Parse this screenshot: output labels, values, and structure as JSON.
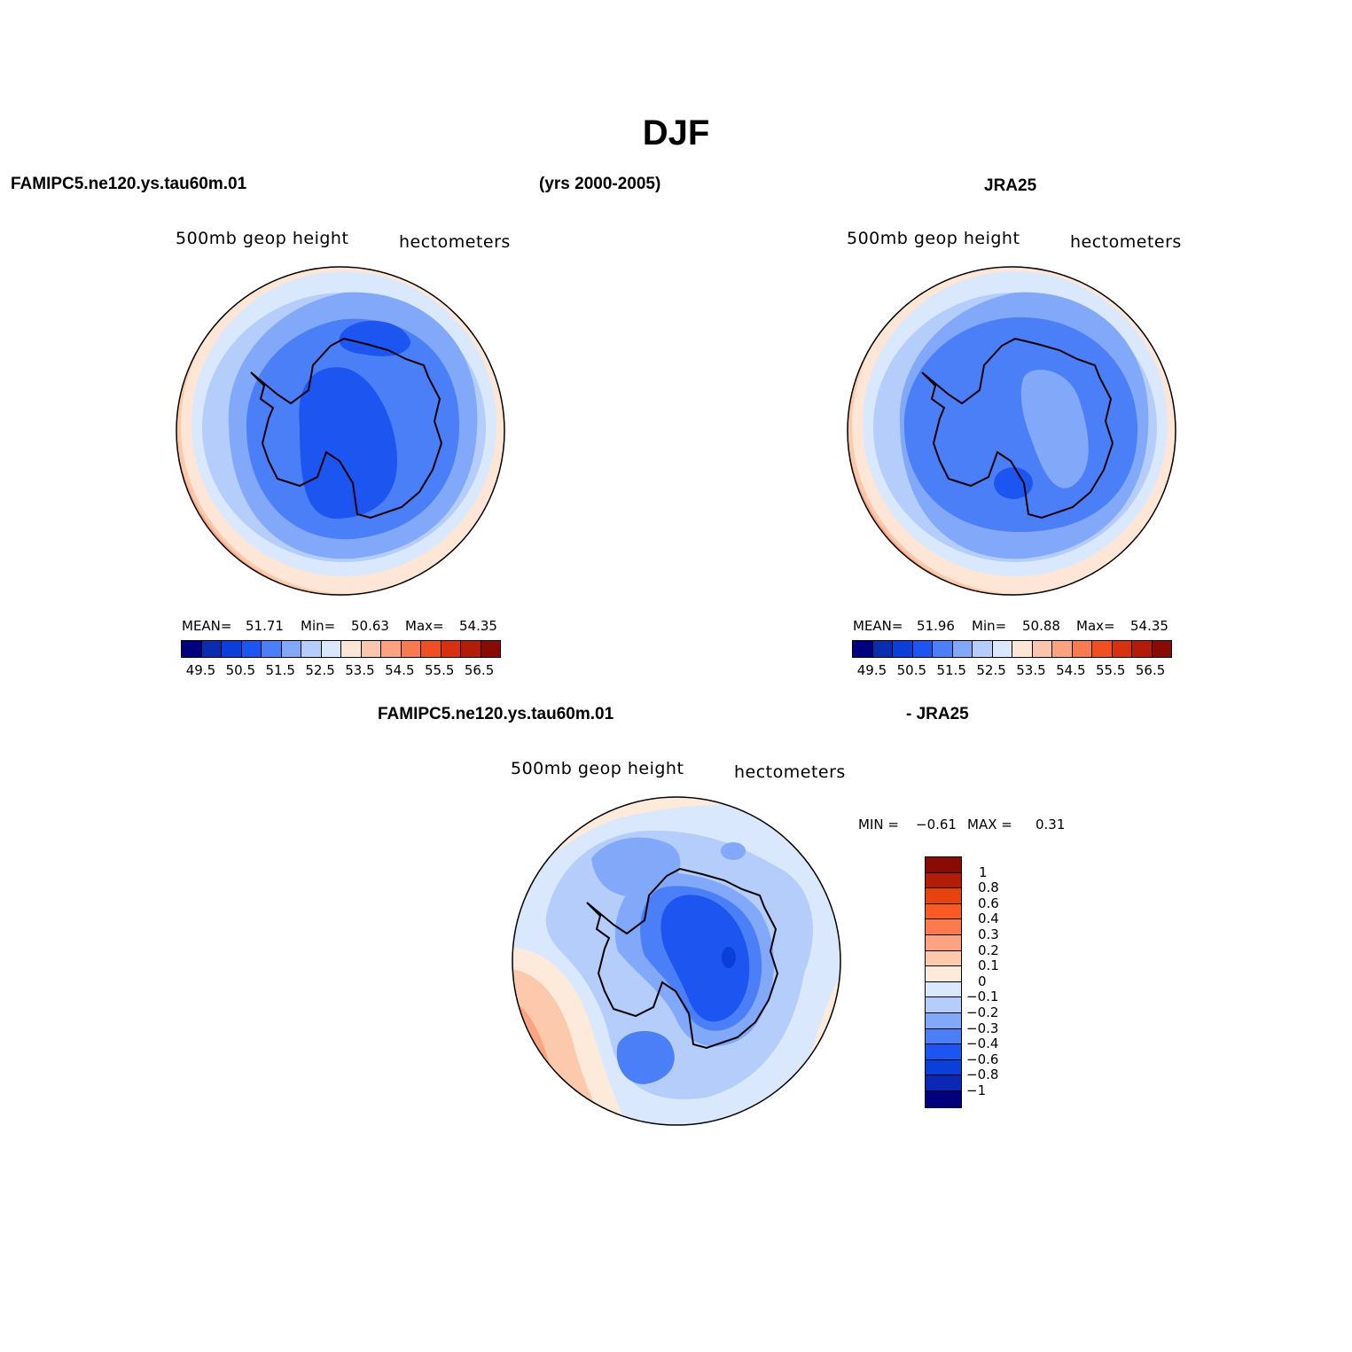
{
  "title": "DJF",
  "header": {
    "model_left": "FAMIPC5.ne120.ys.tau60m.01",
    "years": "(yrs 2000-2005)",
    "obs_right": "JRA25",
    "diff_model": "FAMIPC5.ne120.ys.tau60m.01",
    "diff_obs": "- JRA25"
  },
  "panels": {
    "model": {
      "variable": "500mb  geop  height",
      "units": "hectometers",
      "stats": {
        "mean_label": "MEAN=",
        "mean": "51.71",
        "min_label": "Min=",
        "min": "50.63",
        "max_label": "Max=",
        "max": "54.35"
      }
    },
    "obs": {
      "variable": "500mb  geop  height",
      "units": "hectometers",
      "stats": {
        "mean_label": "MEAN=",
        "mean": "51.96",
        "min_label": "Min=",
        "min": "50.88",
        "max_label": "Max=",
        "max": "54.35"
      }
    },
    "diff": {
      "variable": "500mb  geop  height",
      "units": "hectometers",
      "min_label": "MIN =",
      "min": "−0.61",
      "max_label": "MAX =",
      "max": "0.31"
    }
  },
  "colorbar_main": {
    "colors": [
      "#00007f",
      "#0a2db0",
      "#0a3fd9",
      "#1c55f0",
      "#4a7ff7",
      "#82a8fa",
      "#b5cdfb",
      "#d9e8fd",
      "#fde6d6",
      "#fcc6ac",
      "#fba37e",
      "#f87a4f",
      "#f04f23",
      "#d8310f",
      "#b31d08",
      "#8a0a06"
    ],
    "labels": [
      "49.5",
      "50.5",
      "51.5",
      "52.5",
      "53.5",
      "54.5",
      "55.5",
      "56.5"
    ]
  },
  "colorbar_diff": {
    "colors": [
      "#8a0a06",
      "#b31d08",
      "#e8420e",
      "#fb5a25",
      "#fb7a4e",
      "#fca481",
      "#fdc9ad",
      "#feeada",
      "#d9e8fd",
      "#b5cdfb",
      "#82a8fa",
      "#4a7ff7",
      "#1c55f0",
      "#0a3fd9",
      "#0a28b5",
      "#00007f"
    ],
    "labels": [
      "1",
      "0.8",
      "0.6",
      "0.4",
      "0.3",
      "0.2",
      "0.1",
      "0",
      "−0.1",
      "−0.2",
      "−0.3",
      "−0.4",
      "−0.6",
      "−0.8",
      "−1"
    ]
  }
}
